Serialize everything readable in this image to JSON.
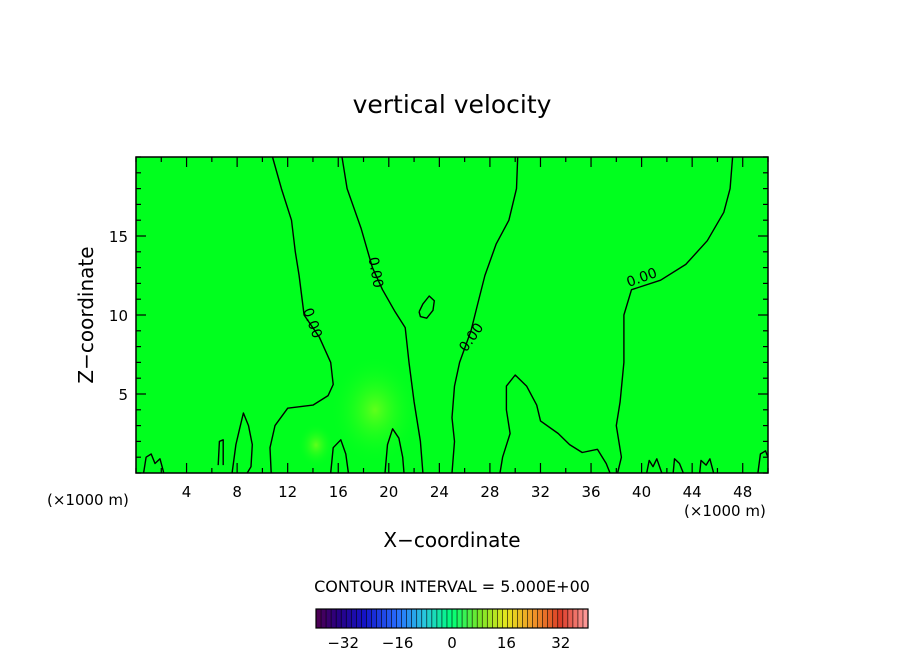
{
  "chart_data": {
    "type": "contour",
    "title": "vertical velocity",
    "xlabel": "X−coordinate",
    "ylabel": "Z−coordinate",
    "x_unit_left": "(×1000 m)",
    "x_unit_right": "(×1000 m)",
    "xlim": [
      0,
      50
    ],
    "ylim": [
      0,
      20
    ],
    "x_ticks": [
      4,
      8,
      12,
      16,
      20,
      24,
      28,
      32,
      36,
      40,
      44,
      48
    ],
    "y_ticks": [
      5,
      10,
      15
    ],
    "contour_labels": [
      {
        "text": "0.00",
        "x": 14.0,
        "y": 9.5,
        "angle": 70
      },
      {
        "text": "0.00",
        "x": 19.0,
        "y": 12.7,
        "angle": 80
      },
      {
        "text": "0.00",
        "x": 26.5,
        "y": 8.6,
        "angle": -55
      },
      {
        "text": "0.00",
        "x": 40.0,
        "y": 12.4,
        "angle": -20
      }
    ],
    "contours": [
      {
        "name": "c1",
        "points": [
          [
            10.8,
            20
          ],
          [
            11.5,
            18
          ],
          [
            12.3,
            16
          ],
          [
            12.6,
            14
          ],
          [
            12.9,
            12.5
          ],
          [
            13.3,
            10
          ],
          [
            14.5,
            8.6
          ],
          [
            15.4,
            7
          ],
          [
            15.6,
            5.6
          ],
          [
            15.2,
            4.9
          ],
          [
            14,
            4.3
          ],
          [
            12,
            4.1
          ],
          [
            11,
            3
          ],
          [
            10.6,
            1.6
          ],
          [
            10.7,
            0
          ]
        ]
      },
      {
        "name": "c2",
        "points": [
          [
            16.3,
            20
          ],
          [
            16.7,
            18
          ],
          [
            17.8,
            15.5
          ],
          [
            18.7,
            13
          ],
          [
            19.5,
            11.6
          ],
          [
            20.5,
            10.2
          ],
          [
            21.3,
            9.2
          ],
          [
            21.6,
            7
          ],
          [
            22,
            4.5
          ],
          [
            22.5,
            2
          ],
          [
            22.7,
            0
          ]
        ]
      },
      {
        "name": "c3",
        "points": [
          [
            30.2,
            20
          ],
          [
            30.1,
            18
          ],
          [
            29.5,
            16
          ],
          [
            28.5,
            14.5
          ],
          [
            27.6,
            12.5
          ],
          [
            27,
            10.6
          ],
          [
            26.5,
            9
          ],
          [
            25.6,
            7
          ],
          [
            25.2,
            5.5
          ],
          [
            25,
            3.5
          ],
          [
            25.2,
            2
          ],
          [
            25,
            0
          ]
        ]
      },
      {
        "name": "c4",
        "points": [
          [
            28.8,
            0
          ],
          [
            29,
            1
          ],
          [
            29.6,
            2.5
          ],
          [
            29.3,
            4
          ],
          [
            29.3,
            5.5
          ],
          [
            30,
            6.2
          ],
          [
            30.9,
            5.5
          ],
          [
            31.7,
            4.3
          ],
          [
            32,
            3.3
          ],
          [
            33.4,
            2.5
          ],
          [
            34.3,
            1.8
          ],
          [
            35.3,
            1.3
          ],
          [
            36.5,
            1.5
          ],
          [
            37.2,
            0.6
          ],
          [
            37.5,
            0
          ]
        ]
      },
      {
        "name": "c5",
        "points": [
          [
            47.2,
            20
          ],
          [
            47.0,
            18
          ],
          [
            46.5,
            16.5
          ],
          [
            45.2,
            14.7
          ],
          [
            43.5,
            13.2
          ],
          [
            41.5,
            12.2
          ],
          [
            39.2,
            11.6
          ],
          [
            38.6,
            10
          ],
          [
            38.6,
            7
          ],
          [
            38.3,
            4.5
          ],
          [
            38,
            3
          ],
          [
            38.4,
            1
          ],
          [
            38.1,
            0
          ]
        ]
      },
      {
        "name": "c6-cell",
        "points": [
          [
            22.4,
            10.2
          ],
          [
            22.7,
            10.7
          ],
          [
            23.2,
            11.2
          ],
          [
            23.6,
            10.9
          ],
          [
            23.5,
            10.3
          ],
          [
            23.0,
            9.8
          ],
          [
            22.5,
            9.9
          ],
          [
            22.4,
            10.2
          ]
        ]
      },
      {
        "name": "c7-bottom-left",
        "points": [
          [
            0.6,
            0
          ],
          [
            0.8,
            1.0
          ],
          [
            1.2,
            1.2
          ],
          [
            1.5,
            0.6
          ],
          [
            1.9,
            0.9
          ],
          [
            2.2,
            0
          ]
        ]
      },
      {
        "name": "c8-bottom",
        "points": [
          [
            6.5,
            0.5
          ],
          [
            6.6,
            2.0
          ],
          [
            6.9,
            2.1
          ],
          [
            6.9,
            0.5
          ]
        ]
      },
      {
        "name": "c9-bottom",
        "points": [
          [
            7.6,
            0
          ],
          [
            7.9,
            1.8
          ],
          [
            8.2,
            2.8
          ],
          [
            8.5,
            3.8
          ],
          [
            8.9,
            3.0
          ],
          [
            9.2,
            1.8
          ],
          [
            9.1,
            0.4
          ],
          [
            8.8,
            0
          ]
        ]
      },
      {
        "name": "c10-bottom",
        "points": [
          [
            15.4,
            0
          ],
          [
            15.6,
            1.6
          ],
          [
            16.2,
            2.1
          ],
          [
            16.6,
            1.2
          ],
          [
            16.8,
            0
          ]
        ]
      },
      {
        "name": "c11-bottom",
        "points": [
          [
            19.7,
            0
          ],
          [
            19.9,
            1.8
          ],
          [
            20.3,
            2.8
          ],
          [
            20.8,
            2.2
          ],
          [
            21.1,
            1.0
          ],
          [
            21.2,
            0
          ]
        ]
      },
      {
        "name": "c12-bottom",
        "points": [
          [
            40.4,
            0
          ],
          [
            40.6,
            0.8
          ],
          [
            40.9,
            0.4
          ],
          [
            41.2,
            0.9
          ],
          [
            41.6,
            0
          ]
        ]
      },
      {
        "name": "c13-bottom",
        "points": [
          [
            42.5,
            0
          ],
          [
            42.6,
            0.9
          ],
          [
            43.0,
            0.6
          ],
          [
            43.3,
            0
          ]
        ]
      },
      {
        "name": "c14-bottom",
        "points": [
          [
            44.6,
            0
          ],
          [
            44.7,
            0.8
          ],
          [
            45.1,
            0.5
          ],
          [
            45.4,
            0.9
          ],
          [
            45.7,
            0
          ]
        ]
      },
      {
        "name": "c15-bottom",
        "points": [
          [
            49.2,
            0
          ],
          [
            49.4,
            1.2
          ],
          [
            49.8,
            1.4
          ],
          [
            50,
            1.0
          ]
        ]
      }
    ],
    "fill_color": "#00ff1e",
    "footer": "CONTOUR INTERVAL = 5.000E+00",
    "colorbar": {
      "range": [
        -40,
        40
      ],
      "tick_values": [
        -32,
        -16,
        0,
        16,
        32
      ],
      "tick_labels": [
        "−32",
        "−16",
        "0",
        "16",
        "32"
      ]
    }
  }
}
